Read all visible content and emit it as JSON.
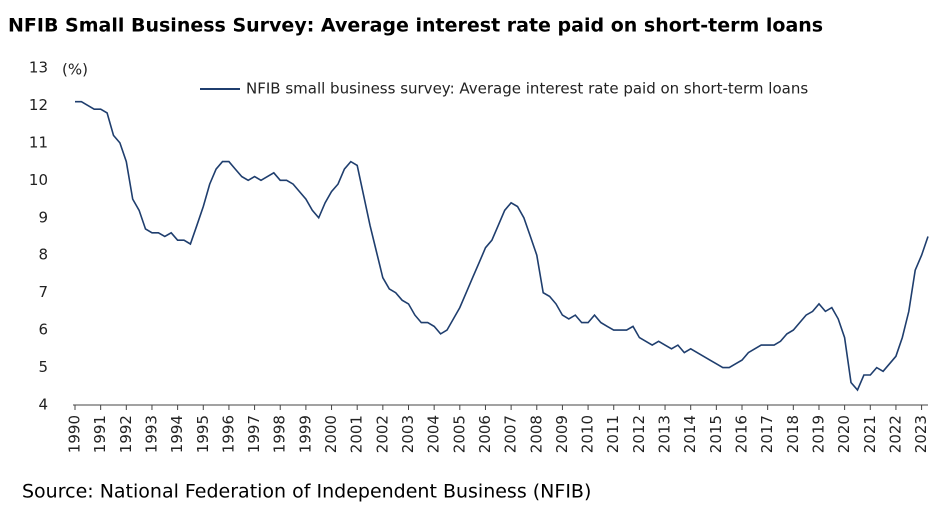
{
  "chart_data": {
    "type": "line",
    "title": "NFIB Small Business Survey: Average interest rate paid on short-term loans",
    "y_label": "(%)",
    "source": "Source: National Federation of Independent Business (NFIB)",
    "x": [
      1990,
      1990.25,
      1990.5,
      1990.75,
      1991,
      1991.25,
      1991.5,
      1991.75,
      1992,
      1992.25,
      1992.5,
      1992.75,
      1993,
      1993.25,
      1993.5,
      1993.75,
      1994,
      1994.25,
      1994.5,
      1994.75,
      1995,
      1995.25,
      1995.5,
      1995.75,
      1996,
      1996.25,
      1996.5,
      1996.75,
      1997,
      1997.25,
      1997.5,
      1997.75,
      1998,
      1998.25,
      1998.5,
      1998.75,
      1999,
      1999.25,
      1999.5,
      1999.75,
      2000,
      2000.25,
      2000.5,
      2000.75,
      2001,
      2001.25,
      2001.5,
      2001.75,
      2002,
      2002.25,
      2002.5,
      2002.75,
      2003,
      2003.25,
      2003.5,
      2003.75,
      2004,
      2004.25,
      2004.5,
      2004.75,
      2005,
      2005.25,
      2005.5,
      2005.75,
      2006,
      2006.25,
      2006.5,
      2006.75,
      2007,
      2007.25,
      2007.5,
      2007.75,
      2008,
      2008.25,
      2008.5,
      2008.75,
      2009,
      2009.25,
      2009.5,
      2009.75,
      2010,
      2010.25,
      2010.5,
      2010.75,
      2011,
      2011.25,
      2011.5,
      2011.75,
      2012,
      2012.25,
      2012.5,
      2012.75,
      2013,
      2013.25,
      2013.5,
      2013.75,
      2014,
      2014.25,
      2014.5,
      2014.75,
      2015,
      2015.25,
      2015.5,
      2015.75,
      2016,
      2016.25,
      2016.5,
      2016.75,
      2017,
      2017.25,
      2017.5,
      2017.75,
      2018,
      2018.25,
      2018.5,
      2018.75,
      2019,
      2019.25,
      2019.5,
      2019.75,
      2020,
      2020.25,
      2020.5,
      2020.75,
      2021,
      2021.25,
      2021.5,
      2021.75,
      2022,
      2022.25,
      2022.5,
      2022.75,
      2023,
      2023.25
    ],
    "series": [
      {
        "name": "NFIB small business survey: Average interest rate paid on short-term loans",
        "color": "#1f3e6e",
        "values": [
          12.1,
          12.1,
          12.0,
          11.9,
          11.9,
          11.8,
          11.2,
          11.0,
          10.5,
          9.5,
          9.2,
          8.7,
          8.6,
          8.6,
          8.5,
          8.6,
          8.4,
          8.4,
          8.3,
          8.8,
          9.3,
          9.9,
          10.3,
          10.5,
          10.5,
          10.3,
          10.1,
          10.0,
          10.1,
          10.0,
          10.1,
          10.2,
          10.0,
          10.0,
          9.9,
          9.7,
          9.5,
          9.2,
          9.0,
          9.4,
          9.7,
          9.9,
          10.3,
          10.5,
          10.4,
          9.6,
          8.8,
          8.1,
          7.4,
          7.1,
          7.0,
          6.8,
          6.7,
          6.4,
          6.2,
          6.2,
          6.1,
          5.9,
          6.0,
          6.3,
          6.6,
          7.0,
          7.4,
          7.8,
          8.2,
          8.4,
          8.8,
          9.2,
          9.4,
          9.3,
          9.0,
          8.5,
          8.0,
          7.0,
          6.9,
          6.7,
          6.4,
          6.3,
          6.4,
          6.2,
          6.2,
          6.4,
          6.2,
          6.1,
          6.0,
          6.0,
          6.0,
          6.1,
          5.8,
          5.7,
          5.6,
          5.7,
          5.6,
          5.5,
          5.6,
          5.4,
          5.5,
          5.4,
          5.3,
          5.2,
          5.1,
          5.0,
          5.0,
          5.1,
          5.2,
          5.4,
          5.5,
          5.6,
          5.6,
          5.6,
          5.7,
          5.9,
          6.0,
          6.2,
          6.4,
          6.5,
          6.7,
          6.5,
          6.6,
          6.3,
          5.8,
          4.6,
          4.4,
          4.8,
          4.8,
          5.0,
          4.9,
          5.1,
          5.3,
          5.8,
          6.5,
          7.6,
          8.0,
          8.5
        ]
      }
    ],
    "xlim": [
      1990,
      2023.25
    ],
    "xticks": [
      1990,
      1991,
      1992,
      1993,
      1994,
      1995,
      1996,
      1997,
      1998,
      1999,
      2000,
      2001,
      2002,
      2003,
      2004,
      2005,
      2006,
      2007,
      2008,
      2009,
      2010,
      2011,
      2012,
      2013,
      2014,
      2015,
      2016,
      2017,
      2018,
      2019,
      2020,
      2021,
      2022,
      2023
    ],
    "ylim": [
      4,
      13
    ],
    "yticks": [
      4,
      5,
      6,
      7,
      8,
      9,
      10,
      11,
      12,
      13
    ],
    "grid": false,
    "legend": "top"
  }
}
